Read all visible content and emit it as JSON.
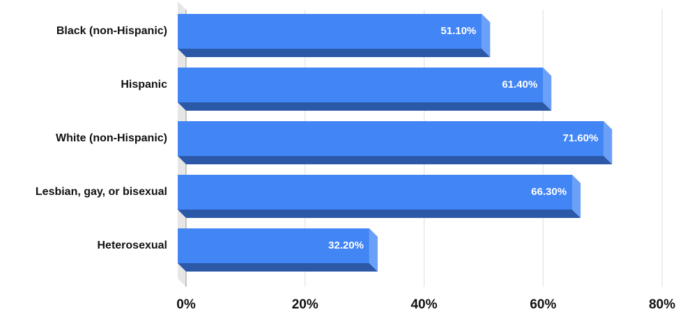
{
  "chart_data": {
    "type": "bar",
    "orientation": "horizontal",
    "categories": [
      "Black (non-Hispanic)",
      "Hispanic",
      "White (non-Hispanic)",
      "Lesbian, gay, or bisexual",
      "Heterosexual"
    ],
    "values": [
      51.1,
      61.4,
      71.6,
      66.3,
      32.2
    ],
    "value_labels": [
      "51.10%",
      "61.40%",
      "71.60%",
      "66.30%",
      "32.20%"
    ],
    "color": "#4285f4",
    "xlim": [
      0,
      80
    ],
    "xticks": [
      {
        "value": 0,
        "label": "0%"
      },
      {
        "value": 20,
        "label": "20%"
      },
      {
        "value": 40,
        "label": "40%"
      },
      {
        "value": 60,
        "label": "60%"
      },
      {
        "value": 80,
        "label": "80%"
      }
    ],
    "grid": true
  }
}
